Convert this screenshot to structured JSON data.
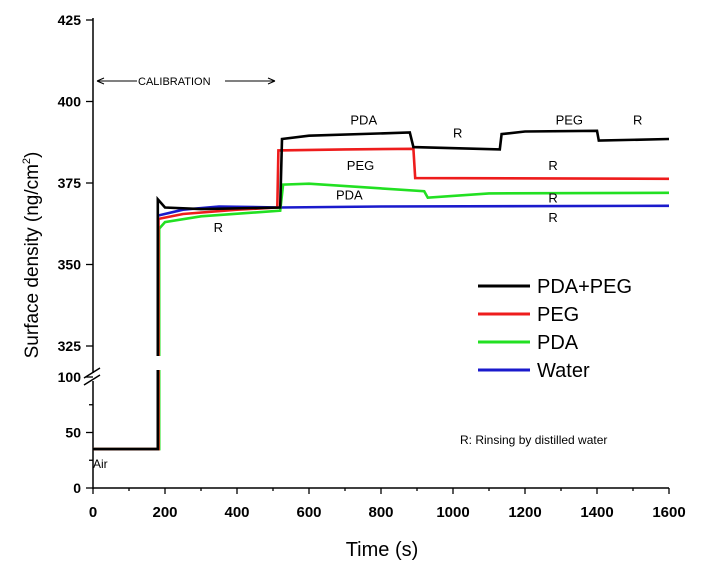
{
  "chart_data": {
    "type": "line",
    "xlabel": "Time (s)",
    "ylabel": "Surface density (ng/cm",
    "ylabel_sup": "2",
    "ylabel_close": ")",
    "xlim": [
      0,
      1600
    ],
    "ylim_lower": [
      0,
      100
    ],
    "ylim_upper": [
      325,
      425
    ],
    "xticks": [
      0,
      200,
      400,
      600,
      800,
      1000,
      1200,
      1400,
      1600
    ],
    "yticks_lower": [
      0,
      50,
      100
    ],
    "yticks_upper": [
      325,
      350,
      375,
      400,
      425
    ],
    "legend_position": "right",
    "series": [
      {
        "name": "PDA+PEG",
        "color": "#000000",
        "points": [
          [
            0,
            35
          ],
          [
            180,
            35
          ],
          [
            180,
            370
          ],
          [
            200,
            367.5
          ],
          [
            300,
            367
          ],
          [
            520,
            367.5
          ],
          [
            525,
            388.5
          ],
          [
            600,
            389.5
          ],
          [
            880,
            390.5
          ],
          [
            890,
            386
          ],
          [
            1130,
            385.3
          ],
          [
            1135,
            390
          ],
          [
            1200,
            390.8
          ],
          [
            1400,
            391
          ],
          [
            1405,
            388
          ],
          [
            1600,
            388.5
          ]
        ]
      },
      {
        "name": "PEG",
        "color": "#ee1c1c",
        "points": [
          [
            0,
            35
          ],
          [
            182,
            35
          ],
          [
            182,
            364
          ],
          [
            250,
            365.5
          ],
          [
            400,
            366.8
          ],
          [
            512,
            367.5
          ],
          [
            515,
            385
          ],
          [
            700,
            385.3
          ],
          [
            890,
            385.5
          ],
          [
            895,
            376.5
          ],
          [
            1600,
            376.3
          ]
        ]
      },
      {
        "name": "PDA",
        "color": "#22e022",
        "points": [
          [
            0,
            35
          ],
          [
            184,
            35
          ],
          [
            184,
            361
          ],
          [
            200,
            363
          ],
          [
            300,
            364.8
          ],
          [
            520,
            366.5
          ],
          [
            528,
            374.5
          ],
          [
            600,
            374.8
          ],
          [
            920,
            372.5
          ],
          [
            930,
            370.5
          ],
          [
            1100,
            371.8
          ],
          [
            1600,
            372
          ]
        ]
      },
      {
        "name": "Water",
        "color": "#1a1acc",
        "points": [
          [
            0,
            35
          ],
          [
            180,
            35
          ],
          [
            180,
            365
          ],
          [
            250,
            366.8
          ],
          [
            350,
            367.8
          ],
          [
            520,
            367.5
          ],
          [
            800,
            367.8
          ],
          [
            1600,
            368
          ]
        ]
      }
    ],
    "annotations": [
      {
        "text": "CALIBRATION",
        "x": 20,
        "y": 406
      },
      {
        "text": "Air",
        "x": 0,
        "y": 18
      },
      {
        "text": "R",
        "x": 335,
        "y": 360
      },
      {
        "text": "PDA",
        "x": 715,
        "y": 393
      },
      {
        "text": "PEG",
        "x": 705,
        "y": 379
      },
      {
        "text": "PDA",
        "x": 675,
        "y": 370
      },
      {
        "text": "R",
        "x": 1000,
        "y": 389
      },
      {
        "text": "PEG",
        "x": 1285,
        "y": 393
      },
      {
        "text": "R",
        "x": 1500,
        "y": 393
      },
      {
        "text": "R",
        "x": 1265,
        "y": 379
      },
      {
        "text": "R",
        "x": 1265,
        "y": 369
      },
      {
        "text": "R",
        "x": 1265,
        "y": 363
      }
    ],
    "note": "R: Rinsing by distilled water"
  }
}
